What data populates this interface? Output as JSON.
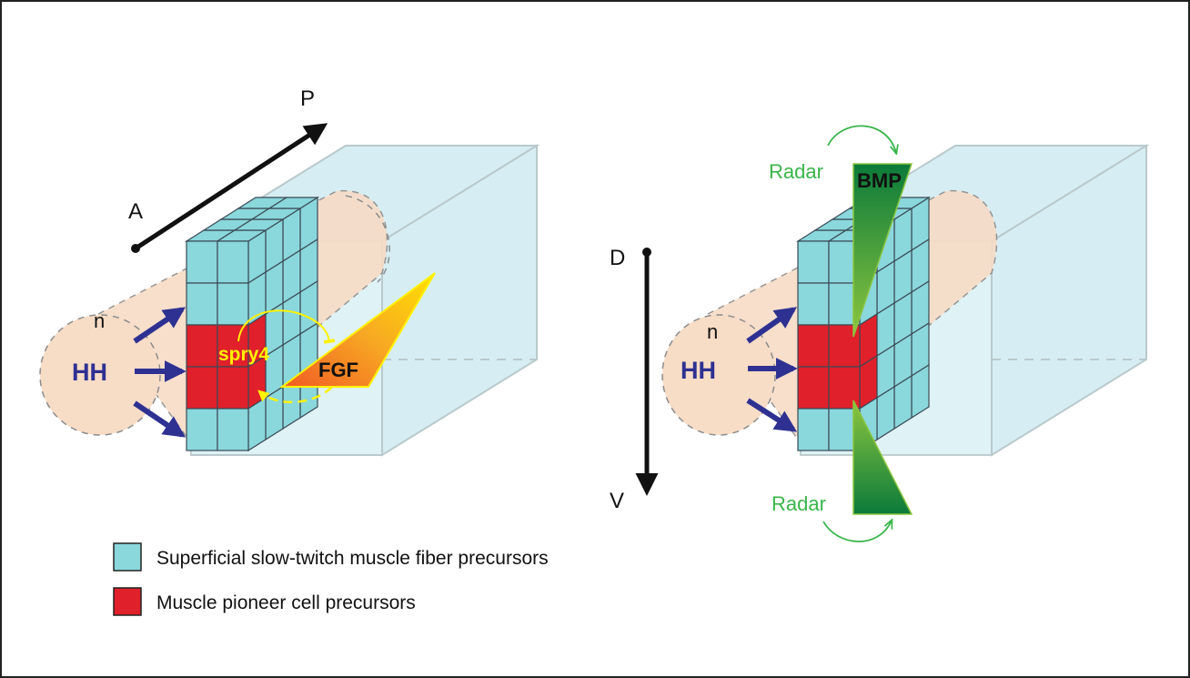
{
  "left_panel": {
    "axis_start": "A",
    "axis_end": "P",
    "notochord": "n",
    "hh": "HH",
    "spry4": "spry4",
    "fgf": "FGF"
  },
  "right_panel": {
    "axis_start": "D",
    "axis_end": "V",
    "notochord": "n",
    "hh": "HH",
    "bmp": "BMP",
    "radar_top": "Radar",
    "radar_bottom": "Radar"
  },
  "legend": {
    "items": [
      {
        "label": "Superficial slow-twitch muscle fiber precursors",
        "color": "#8ad7dc"
      },
      {
        "label": "Muscle pioneer cell precursors",
        "color": "#e0202a"
      }
    ]
  },
  "colors": {
    "slow_muscle": "#8ad7dc",
    "pioneer": "#e0202a",
    "hh_arrow": "#2e3192",
    "radar": "#39b54a",
    "fgf": "#f7a823",
    "spry4": "#fff200",
    "box": "#d6eef3",
    "notochord": "#f7dcc6"
  }
}
